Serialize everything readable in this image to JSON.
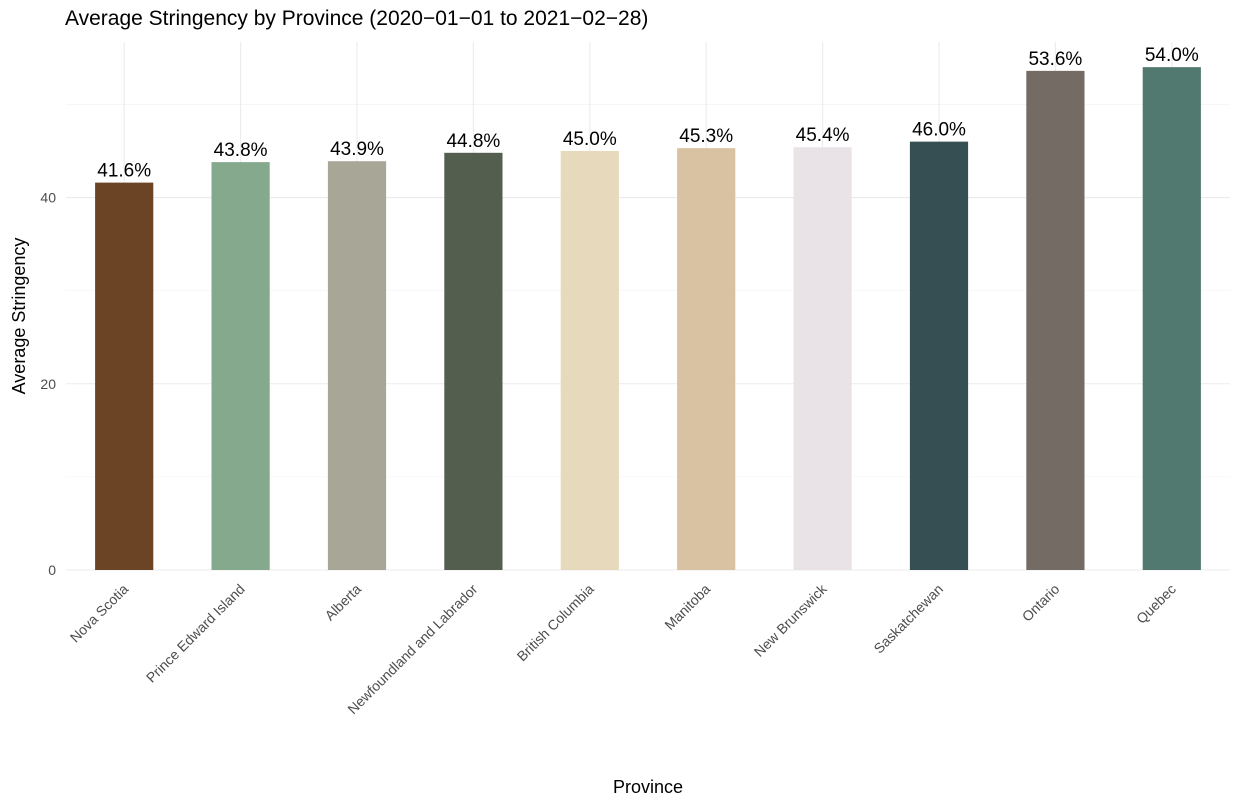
{
  "chart_data": {
    "type": "bar",
    "title": "Average Stringency by Province (2020−01−01 to 2021−02−28)",
    "xlabel": "Province",
    "ylabel": "Average Stringency",
    "ylim": [
      0,
      56.7
    ],
    "yticks": [
      0,
      20,
      40
    ],
    "grid": true,
    "legend": "none",
    "categories": [
      "Nova Scotia",
      "Prince Edward Island",
      "Alberta",
      "Newfoundland and Labrador",
      "British Columbia",
      "Manitoba",
      "New Brunswick",
      "Saskatchewan",
      "Ontario",
      "Quebec"
    ],
    "values": [
      41.6,
      43.8,
      43.9,
      44.8,
      45.0,
      45.3,
      45.4,
      46.0,
      53.6,
      54.0
    ],
    "labels": [
      "41.6%",
      "43.8%",
      "43.9%",
      "44.8%",
      "45.0%",
      "45.3%",
      "45.4%",
      "46.0%",
      "53.6%",
      "54.0%"
    ],
    "colors": [
      "#6b4426",
      "#84a98c",
      "#a8a696",
      "#545e4f",
      "#e6d9bc",
      "#d8c2a2",
      "#e9e3e7",
      "#354f52",
      "#756b65",
      "#52796f"
    ]
  }
}
